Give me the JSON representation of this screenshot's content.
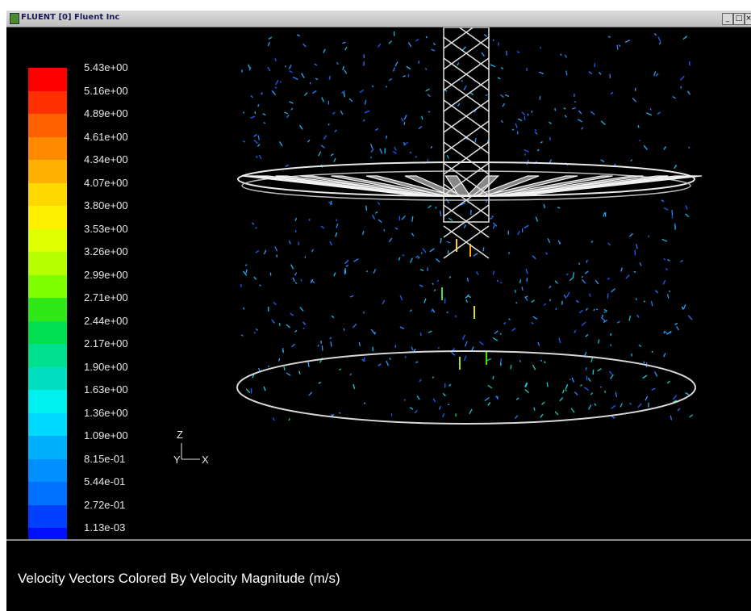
{
  "window": {
    "title": "FLUENT [0] Fluent Inc",
    "controls": [
      "_",
      "□",
      "×"
    ]
  },
  "legend": {
    "labels": [
      "5.43e+00",
      "5.16e+00",
      "4.89e+00",
      "4.61e+00",
      "4.34e+00",
      "4.07e+00",
      "3.80e+00",
      "3.53e+00",
      "3.26e+00",
      "2.99e+00",
      "2.71e+00",
      "2.44e+00",
      "2.17e+00",
      "1.90e+00",
      "1.63e+00",
      "1.36e+00",
      "1.09e+00",
      "8.15e-01",
      "5.44e-01",
      "2.72e-01",
      "1.13e-03"
    ],
    "colors": [
      "#ff0000",
      "#ff3000",
      "#ff6000",
      "#ff8a00",
      "#ffb000",
      "#ffd800",
      "#fff000",
      "#e0ff00",
      "#b8ff00",
      "#80ff00",
      "#30e818",
      "#00e050",
      "#00e090",
      "#00e0c0",
      "#00f0f0",
      "#00d8ff",
      "#00b0ff",
      "#0090ff",
      "#0070ff",
      "#0040ff",
      "#0010ff"
    ]
  },
  "axes": {
    "vertical": "Z",
    "horizontal": "X",
    "depth": "Y"
  },
  "caption": "Velocity Vectors Colored By Velocity Magnitude (m/s)"
}
